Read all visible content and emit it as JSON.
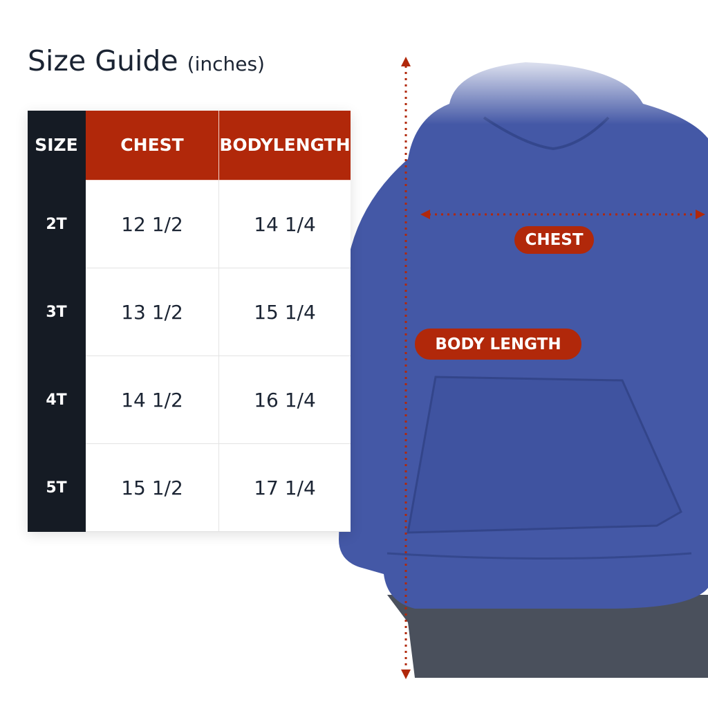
{
  "title": {
    "main": "Size Guide",
    "unit": "(inches)"
  },
  "table": {
    "headers": [
      "SIZE",
      "CHEST",
      "BODY\nLENGTH"
    ],
    "header_body_length_line1": "BODY",
    "header_body_length_line2": "LENGTH",
    "rows": [
      {
        "size": "2T",
        "chest": "12 1/2",
        "length": "14 1/4"
      },
      {
        "size": "3T",
        "chest": "13 1/2",
        "length": "15 1/4"
      },
      {
        "size": "4T",
        "chest": "14 1/2",
        "length": "16 1/4"
      },
      {
        "size": "5T",
        "chest": "15 1/2",
        "length": "17 1/4"
      }
    ]
  },
  "labels": {
    "chest": "CHEST",
    "body_length": "BODY LENGTH"
  },
  "colors": {
    "accent": "#b1280a",
    "dark": "#151b24",
    "hoodie": "#4458a6"
  }
}
